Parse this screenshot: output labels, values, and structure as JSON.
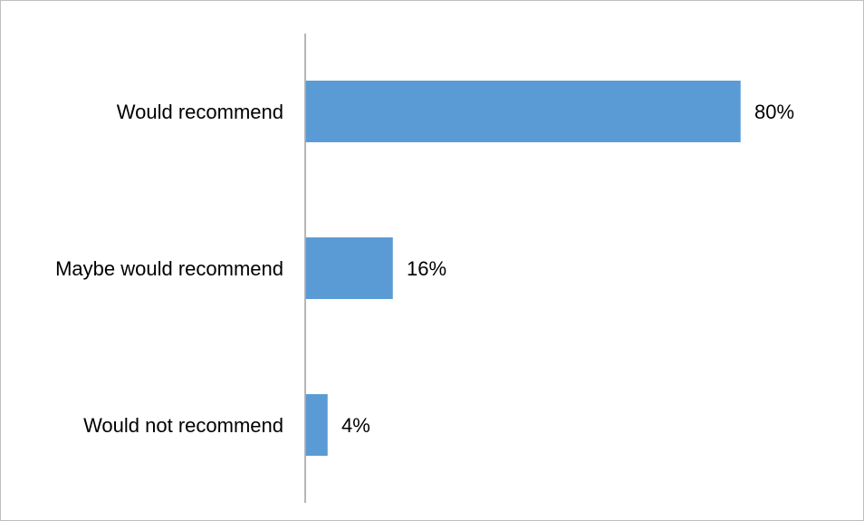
{
  "chart_data": {
    "type": "bar",
    "orientation": "horizontal",
    "categories": [
      "Would recommend",
      "Maybe would recommend",
      "Would not recommend"
    ],
    "values": [
      80,
      16,
      4
    ],
    "value_labels": [
      "80%",
      "16%",
      "4%"
    ],
    "unit": "%",
    "title": "",
    "xlabel": "",
    "ylabel": "",
    "xlim": [
      0,
      100
    ],
    "grid": false,
    "legend": "none",
    "bar_color": "#5b9bd5",
    "axis_color": "#9e9e9e"
  }
}
